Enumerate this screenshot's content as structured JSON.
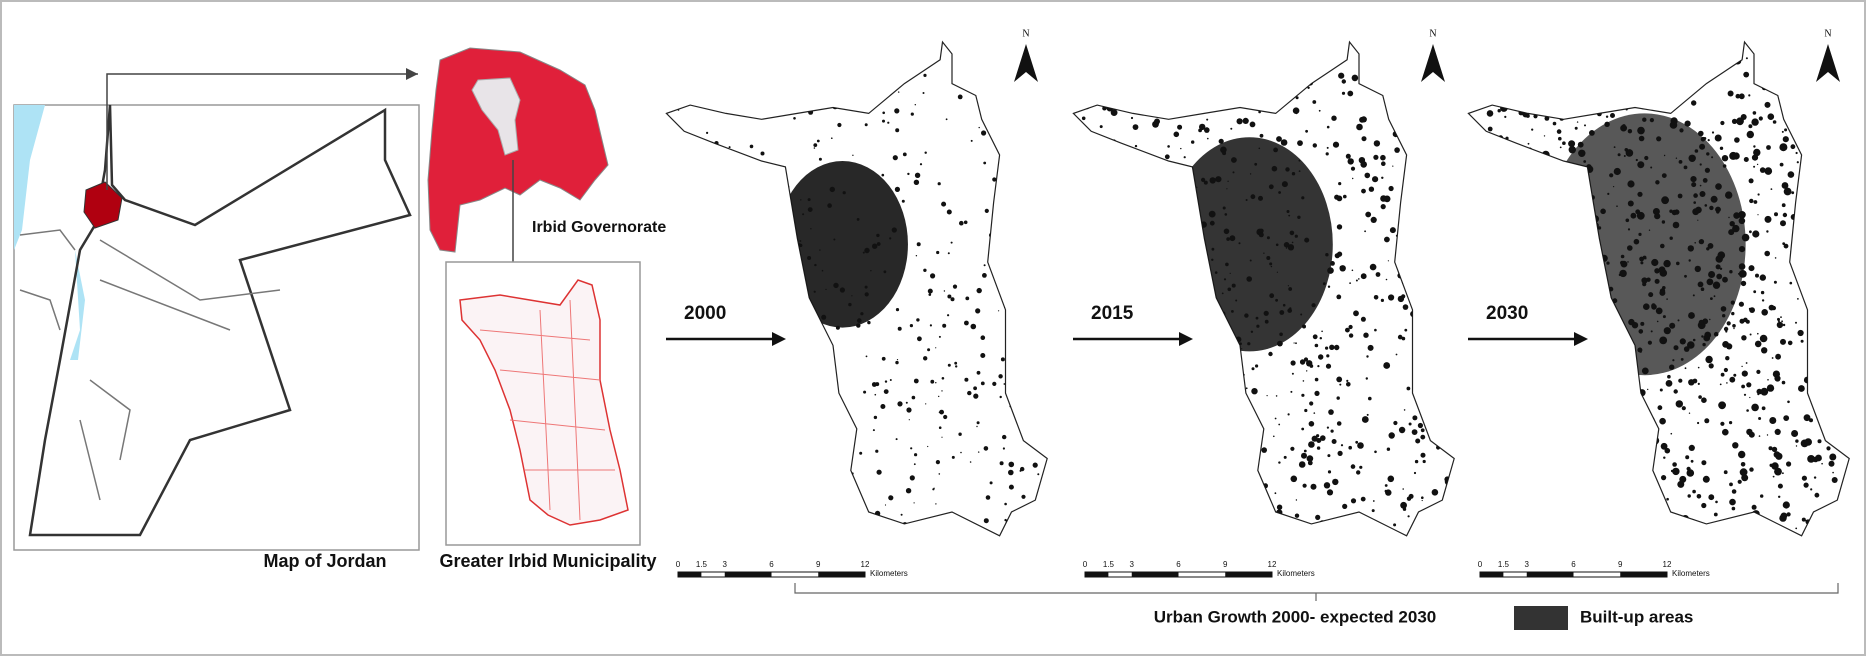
{
  "labels": {
    "jordan": "Map of Jordan",
    "municipality": "Greater Irbid Municipality",
    "governorate": "Irbid Governorate"
  },
  "panels": [
    {
      "year": "2000",
      "north": "N",
      "scale": [
        0,
        1.5,
        3,
        6,
        9,
        12
      ],
      "unit": "Kilometers"
    },
    {
      "year": "2015",
      "north": "N",
      "scale": [
        0,
        1.5,
        3,
        6,
        9,
        12
      ],
      "unit": "Kilometers"
    },
    {
      "year": "2030",
      "north": "N",
      "scale": [
        0,
        1.5,
        3,
        6,
        9,
        12
      ],
      "unit": "Kilometers"
    }
  ],
  "caption": "Urban Growth 2000- expected 2030",
  "legend": "Built-up areas"
}
